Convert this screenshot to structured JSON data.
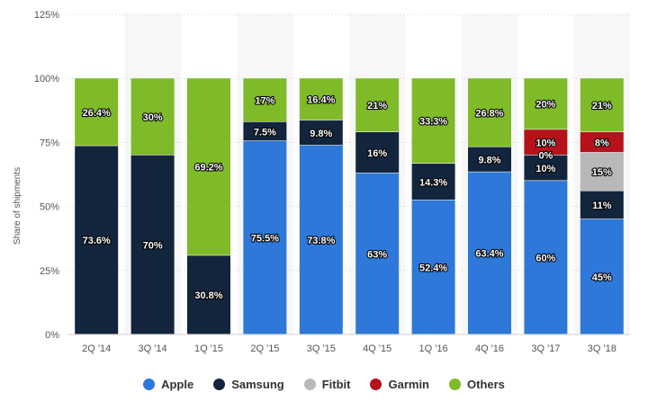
{
  "chart_data": {
    "type": "bar",
    "stacked": true,
    "ylabel": "Share of shipments",
    "ylim": [
      0,
      125
    ],
    "yticks": [
      "0%",
      "25%",
      "50%",
      "75%",
      "100%",
      "125%"
    ],
    "yticks_values": [
      0,
      25,
      50,
      75,
      100,
      125
    ],
    "categories": [
      "2Q '14",
      "3Q '14",
      "1Q '15",
      "2Q '15",
      "3Q '15",
      "4Q '15",
      "1Q '16",
      "4Q '16",
      "3Q '17",
      "3Q '18"
    ],
    "series": [
      {
        "name": "Apple",
        "color": "#2d78d9",
        "values": [
          0,
          0,
          0,
          75.5,
          73.8,
          63,
          52.4,
          63.4,
          60,
          45
        ],
        "labels": [
          "",
          "",
          "",
          "75.5%",
          "73.8%",
          "63%",
          "52.4%",
          "63.4%",
          "60%",
          "45%"
        ]
      },
      {
        "name": "Samsung",
        "color": "#12253c",
        "values": [
          73.6,
          70,
          30.8,
          7.5,
          9.8,
          16,
          14.3,
          9.8,
          10,
          11
        ],
        "labels": [
          "73.6%",
          "70%",
          "30.8%",
          "7.5%",
          "9.8%",
          "16%",
          "14.3%",
          "9.8%",
          "10%",
          "11%"
        ]
      },
      {
        "name": "Fitbit",
        "color": "#b8b8b8",
        "values": [
          0,
          0,
          0,
          0,
          0,
          0,
          0,
          0,
          0,
          15
        ],
        "labels": [
          "",
          "",
          "",
          "",
          "",
          "",
          "",
          "",
          "0%",
          "15%"
        ]
      },
      {
        "name": "Garmin",
        "color": "#b5121b",
        "values": [
          0,
          0,
          0,
          0,
          0,
          0,
          0,
          0,
          10,
          8
        ],
        "labels": [
          "",
          "",
          "",
          "",
          "",
          "",
          "",
          "",
          "10%",
          "8%"
        ]
      },
      {
        "name": "Others",
        "color": "#7fba28",
        "values": [
          26.4,
          30,
          69.2,
          17,
          16.4,
          21,
          33.3,
          26.8,
          20,
          21
        ],
        "labels": [
          "26.4%",
          "30%",
          "69.2%",
          "17%",
          "16.4%",
          "21%",
          "33.3%",
          "26.8%",
          "20%",
          "21%"
        ]
      }
    ],
    "grid": true,
    "legend_position": "bottom"
  }
}
